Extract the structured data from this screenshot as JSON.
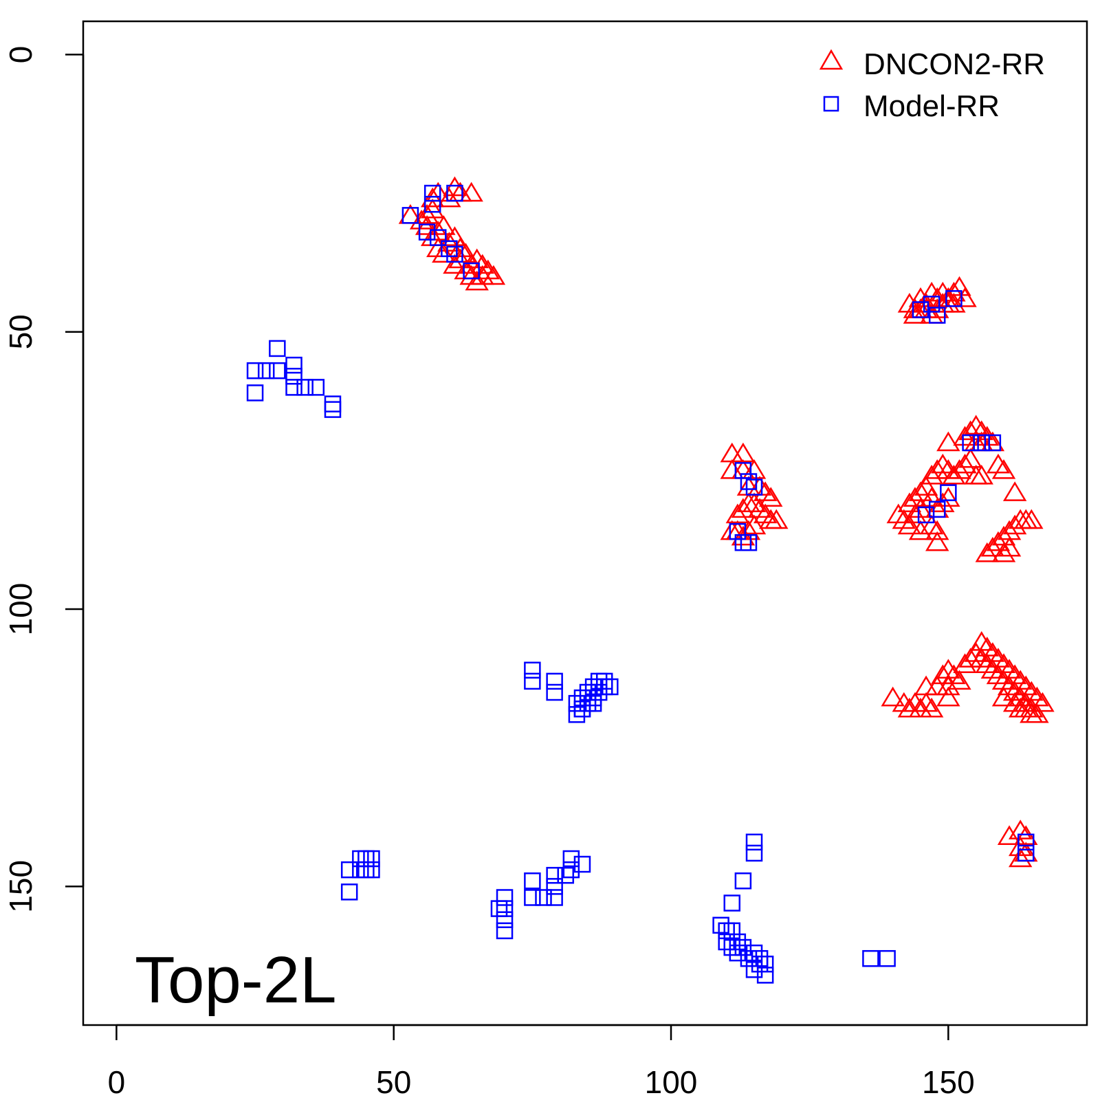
{
  "chart_data": {
    "type": "scatter",
    "title": "",
    "xlabel": "",
    "ylabel": "",
    "xlim": [
      -6,
      175
    ],
    "ylim": [
      -6,
      175
    ],
    "y_axis_reversed": true,
    "x_ticks": [
      "0",
      "50",
      "100",
      "150"
    ],
    "y_ticks": [
      "0",
      "50",
      "100",
      "150"
    ],
    "annotation": "Top-2L",
    "legend": {
      "position": "top-right"
    },
    "series": [
      {
        "name": "DNCON2-RR",
        "marker": "triangle",
        "color": "#ff0000",
        "points": [
          [
            53,
            29
          ],
          [
            55,
            30
          ],
          [
            56,
            29
          ],
          [
            57,
            28
          ],
          [
            57,
            26
          ],
          [
            58,
            25
          ],
          [
            60,
            26
          ],
          [
            61,
            24
          ],
          [
            62,
            25
          ],
          [
            64,
            25
          ],
          [
            56,
            31
          ],
          [
            57,
            33
          ],
          [
            58,
            32
          ],
          [
            59,
            31
          ],
          [
            58,
            35
          ],
          [
            59,
            36
          ],
          [
            60,
            34
          ],
          [
            61,
            33
          ],
          [
            62,
            35
          ],
          [
            63,
            36
          ],
          [
            61,
            38
          ],
          [
            62,
            37
          ],
          [
            63,
            39
          ],
          [
            64,
            38
          ],
          [
            65,
            37
          ],
          [
            66,
            38
          ],
          [
            67,
            39
          ],
          [
            64,
            40
          ],
          [
            65,
            41
          ],
          [
            66,
            40
          ],
          [
            68,
            40
          ],
          [
            143,
            45
          ],
          [
            144,
            46
          ],
          [
            145,
            44
          ],
          [
            146,
            45
          ],
          [
            147,
            43
          ],
          [
            148,
            44
          ],
          [
            149,
            43
          ],
          [
            150,
            44
          ],
          [
            151,
            43
          ],
          [
            152,
            42
          ],
          [
            144,
            47
          ],
          [
            145,
            46
          ],
          [
            146,
            46
          ],
          [
            147,
            47
          ],
          [
            148,
            46
          ],
          [
            149,
            45
          ],
          [
            150,
            45
          ],
          [
            151,
            45
          ],
          [
            153,
            44
          ],
          [
            111,
            72
          ],
          [
            113,
            72
          ],
          [
            111,
            75
          ],
          [
            113,
            75
          ],
          [
            115,
            75
          ],
          [
            114,
            78
          ],
          [
            116,
            78
          ],
          [
            117,
            79
          ],
          [
            118,
            80
          ],
          [
            112,
            83
          ],
          [
            113,
            82
          ],
          [
            114,
            81
          ],
          [
            115,
            81
          ],
          [
            116,
            82
          ],
          [
            117,
            83
          ],
          [
            118,
            84
          ],
          [
            119,
            84
          ],
          [
            111,
            86
          ],
          [
            112,
            86
          ],
          [
            113,
            87
          ],
          [
            114,
            86
          ],
          [
            115,
            85
          ],
          [
            153,
            69
          ],
          [
            154,
            68
          ],
          [
            155,
            67
          ],
          [
            156,
            68
          ],
          [
            157,
            69
          ],
          [
            155,
            70
          ],
          [
            156,
            70
          ],
          [
            158,
            70
          ],
          [
            150,
            70
          ],
          [
            147,
            76
          ],
          [
            148,
            75
          ],
          [
            149,
            74
          ],
          [
            150,
            75
          ],
          [
            151,
            76
          ],
          [
            152,
            75
          ],
          [
            153,
            74
          ],
          [
            154,
            73
          ],
          [
            155,
            76
          ],
          [
            156,
            76
          ],
          [
            159,
            74
          ],
          [
            160,
            75
          ],
          [
            162,
            79
          ],
          [
            143,
            81
          ],
          [
            144,
            80
          ],
          [
            145,
            79
          ],
          [
            146,
            78
          ],
          [
            147,
            80
          ],
          [
            148,
            82
          ],
          [
            149,
            81
          ],
          [
            150,
            80
          ],
          [
            144,
            83
          ],
          [
            145,
            82
          ],
          [
            141,
            83
          ],
          [
            142,
            84
          ],
          [
            143,
            85
          ],
          [
            145,
            86
          ],
          [
            147,
            85
          ],
          [
            148,
            86
          ],
          [
            148,
            88
          ],
          [
            158,
            89
          ],
          [
            159,
            88
          ],
          [
            160,
            87
          ],
          [
            161,
            86
          ],
          [
            162,
            85
          ],
          [
            163,
            84
          ],
          [
            164,
            84
          ],
          [
            165,
            84
          ],
          [
            157,
            90
          ],
          [
            160,
            90
          ],
          [
            161,
            89
          ],
          [
            156,
            106
          ],
          [
            157,
            107
          ],
          [
            158,
            108
          ],
          [
            159,
            109
          ],
          [
            160,
            110
          ],
          [
            161,
            111
          ],
          [
            162,
            112
          ],
          [
            163,
            113
          ],
          [
            164,
            114
          ],
          [
            165,
            115
          ],
          [
            166,
            116
          ],
          [
            167,
            117
          ],
          [
            153,
            110
          ],
          [
            154,
            109
          ],
          [
            155,
            108
          ],
          [
            156,
            109
          ],
          [
            157,
            110
          ],
          [
            158,
            111
          ],
          [
            159,
            112
          ],
          [
            160,
            113
          ],
          [
            161,
            114
          ],
          [
            162,
            115
          ],
          [
            163,
            116
          ],
          [
            164,
            117
          ],
          [
            165,
            118
          ],
          [
            166,
            119
          ],
          [
            149,
            112
          ],
          [
            150,
            111
          ],
          [
            151,
            112
          ],
          [
            152,
            113
          ],
          [
            146,
            114
          ],
          [
            148,
            114
          ],
          [
            150,
            114
          ],
          [
            140,
            116
          ],
          [
            142,
            117
          ],
          [
            143,
            118
          ],
          [
            144,
            117
          ],
          [
            145,
            118
          ],
          [
            146,
            117
          ],
          [
            147,
            118
          ],
          [
            150,
            116
          ],
          [
            160,
            116
          ],
          [
            162,
            117
          ],
          [
            163,
            118
          ],
          [
            164,
            118
          ],
          [
            165,
            119
          ],
          [
            161,
            141
          ],
          [
            163,
            140
          ],
          [
            164,
            141
          ],
          [
            163,
            143
          ],
          [
            164,
            144
          ],
          [
            163,
            145
          ]
        ]
      },
      {
        "name": "Model-RR",
        "marker": "square",
        "color": "#0000ff",
        "points": [
          [
            53,
            29
          ],
          [
            57,
            25
          ],
          [
            57,
            27
          ],
          [
            61,
            25
          ],
          [
            56,
            32
          ],
          [
            58,
            33
          ],
          [
            60,
            35
          ],
          [
            61,
            36
          ],
          [
            64,
            39
          ],
          [
            145,
            46
          ],
          [
            147,
            45
          ],
          [
            148,
            47
          ],
          [
            151,
            44
          ],
          [
            113,
            75
          ],
          [
            114,
            77
          ],
          [
            115,
            78
          ],
          [
            112,
            86
          ],
          [
            113,
            88
          ],
          [
            114,
            88
          ],
          [
            154,
            70
          ],
          [
            156,
            70
          ],
          [
            158,
            70
          ],
          [
            146,
            83
          ],
          [
            148,
            82
          ],
          [
            150,
            79
          ],
          [
            164,
            142
          ],
          [
            164,
            144
          ],
          [
            29,
            53
          ],
          [
            25,
            57
          ],
          [
            27,
            57
          ],
          [
            29,
            57
          ],
          [
            32,
            56
          ],
          [
            32,
            58
          ],
          [
            25,
            61
          ],
          [
            32,
            60
          ],
          [
            34,
            60
          ],
          [
            36,
            60
          ],
          [
            39,
            63
          ],
          [
            39,
            64
          ],
          [
            75,
            111
          ],
          [
            75,
            113
          ],
          [
            79,
            113
          ],
          [
            79,
            115
          ],
          [
            83,
            117
          ],
          [
            84,
            116
          ],
          [
            85,
            115
          ],
          [
            86,
            114
          ],
          [
            87,
            113
          ],
          [
            88,
            113
          ],
          [
            84,
            118
          ],
          [
            85,
            117
          ],
          [
            86,
            116
          ],
          [
            87,
            115
          ],
          [
            88,
            114
          ],
          [
            89,
            114
          ],
          [
            83,
            119
          ],
          [
            84,
            118
          ],
          [
            86,
            117
          ],
          [
            44,
            145
          ],
          [
            45,
            145
          ],
          [
            46,
            145
          ],
          [
            44,
            147
          ],
          [
            45,
            147
          ],
          [
            46,
            147
          ],
          [
            42,
            147
          ],
          [
            42,
            151
          ],
          [
            75,
            149
          ],
          [
            79,
            148
          ],
          [
            79,
            150
          ],
          [
            81,
            148
          ],
          [
            82,
            145
          ],
          [
            82,
            147
          ],
          [
            84,
            146
          ],
          [
            75,
            152
          ],
          [
            77,
            152
          ],
          [
            79,
            152
          ],
          [
            70,
            152
          ],
          [
            70,
            154
          ],
          [
            69,
            154
          ],
          [
            70,
            156
          ],
          [
            70,
            158
          ],
          [
            115,
            142
          ],
          [
            115,
            144
          ],
          [
            113,
            149
          ],
          [
            111,
            153
          ],
          [
            109,
            157
          ],
          [
            110,
            158
          ],
          [
            111,
            158
          ],
          [
            110,
            160
          ],
          [
            111,
            161
          ],
          [
            112,
            160
          ],
          [
            112,
            162
          ],
          [
            113,
            161
          ],
          [
            114,
            163
          ],
          [
            115,
            162
          ],
          [
            116,
            163
          ],
          [
            116,
            164
          ],
          [
            115,
            165
          ],
          [
            117,
            164
          ],
          [
            117,
            166
          ],
          [
            136,
            163
          ],
          [
            139,
            163
          ]
        ]
      }
    ]
  }
}
